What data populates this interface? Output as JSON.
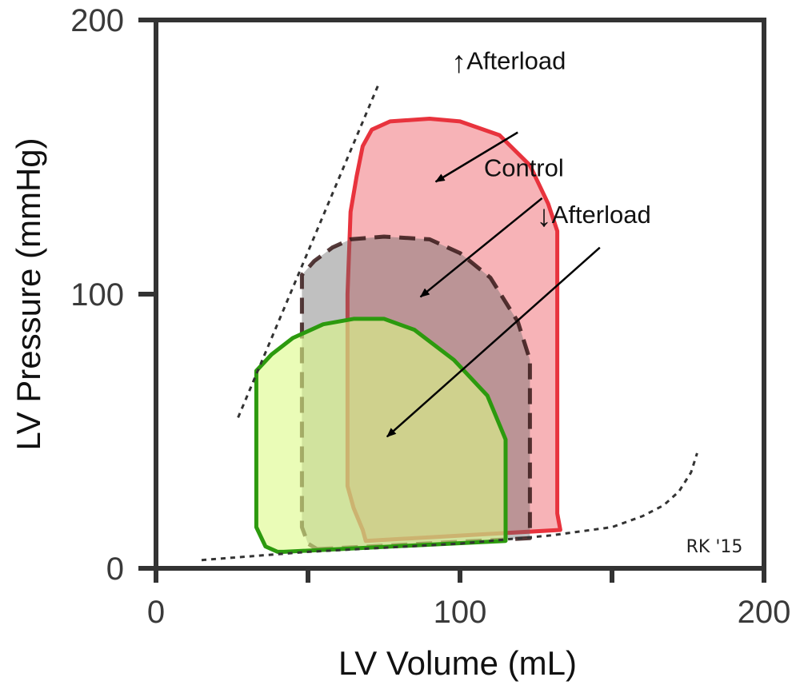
{
  "chart_data": {
    "type": "line",
    "xlabel": "LV Volume (mL)",
    "ylabel": "LV Pressure (mmHg)",
    "xlim": [
      0,
      200
    ],
    "ylim": [
      0,
      200
    ],
    "x_ticks": [
      "0",
      "100",
      "200"
    ],
    "y_ticks": [
      "0",
      "100",
      "200"
    ],
    "grid": false,
    "signature": "RK '15",
    "reference_lines": {
      "espvr": {
        "style": "dotted",
        "points": [
          [
            27,
            55
          ],
          [
            73,
            176
          ]
        ]
      },
      "edpvr": {
        "style": "dotted",
        "points": [
          [
            15,
            3
          ],
          [
            50,
            6
          ],
          [
            100,
            9
          ],
          [
            130,
            12
          ],
          [
            150,
            15
          ],
          [
            160,
            19
          ],
          [
            167,
            23
          ],
          [
            172,
            28
          ],
          [
            176,
            35
          ],
          [
            178,
            42
          ]
        ]
      }
    },
    "series": [
      {
        "key": "high",
        "fill": "#f7b3b7",
        "stroke": "#e8333d",
        "dashed": false,
        "points": [
          [
            69,
            10
          ],
          [
            133,
            14
          ],
          [
            132,
            20
          ],
          [
            132,
            100
          ],
          [
            132,
            123
          ],
          [
            129,
            133
          ],
          [
            123,
            147
          ],
          [
            113,
            158
          ],
          [
            100,
            163
          ],
          [
            90,
            164
          ],
          [
            77,
            163
          ],
          [
            71,
            160
          ],
          [
            68,
            154
          ],
          [
            66,
            143
          ],
          [
            64,
            130
          ],
          [
            63,
            100
          ],
          [
            63,
            60
          ],
          [
            63,
            30
          ],
          [
            65,
            22
          ],
          [
            68,
            14
          ]
        ]
      },
      {
        "key": "control",
        "fill": "rgba(105,105,105,0.42)",
        "stroke": "rgba(55,25,25,0.85)",
        "dashed": true,
        "points": [
          [
            53,
            7
          ],
          [
            123,
            11
          ],
          [
            123,
            30
          ],
          [
            123,
            76
          ],
          [
            119,
            90
          ],
          [
            110,
            106
          ],
          [
            100,
            115
          ],
          [
            90,
            120
          ],
          [
            75,
            121
          ],
          [
            64,
            120
          ],
          [
            58,
            117
          ],
          [
            52,
            112
          ],
          [
            48,
            107
          ],
          [
            48,
            70
          ],
          [
            48,
            45
          ],
          [
            48,
            15
          ],
          [
            50,
            9
          ]
        ]
      },
      {
        "key": "low",
        "fill": "rgba(220,250,135,0.6)",
        "stroke": "#2c9a0e",
        "dashed": false,
        "points": [
          [
            42,
            6
          ],
          [
            115,
            10
          ],
          [
            115,
            25
          ],
          [
            115,
            47
          ],
          [
            109,
            63
          ],
          [
            98,
            76
          ],
          [
            85,
            87
          ],
          [
            75,
            91
          ],
          [
            65,
            91
          ],
          [
            55,
            89
          ],
          [
            45,
            84
          ],
          [
            38,
            78
          ],
          [
            33,
            72
          ],
          [
            33,
            50
          ],
          [
            33,
            15
          ],
          [
            36,
            8
          ],
          [
            40,
            6
          ]
        ]
      }
    ],
    "annotations": [
      {
        "label_prefix": "↑",
        "label": "Afterload",
        "text_at": [
          116,
          182
        ],
        "arrow_from": [
          119,
          159
        ],
        "arrow_to": [
          92,
          141
        ]
      },
      {
        "label_prefix": "",
        "label": "Control",
        "text_at": [
          121,
          143
        ],
        "arrow_from": [
          127,
          135
        ],
        "arrow_to": [
          87,
          99
        ]
      },
      {
        "label_prefix": "↓",
        "label": "Afterload",
        "text_at": [
          144,
          126
        ],
        "arrow_from": [
          146,
          117
        ],
        "arrow_to": [
          76,
          48
        ]
      }
    ]
  }
}
